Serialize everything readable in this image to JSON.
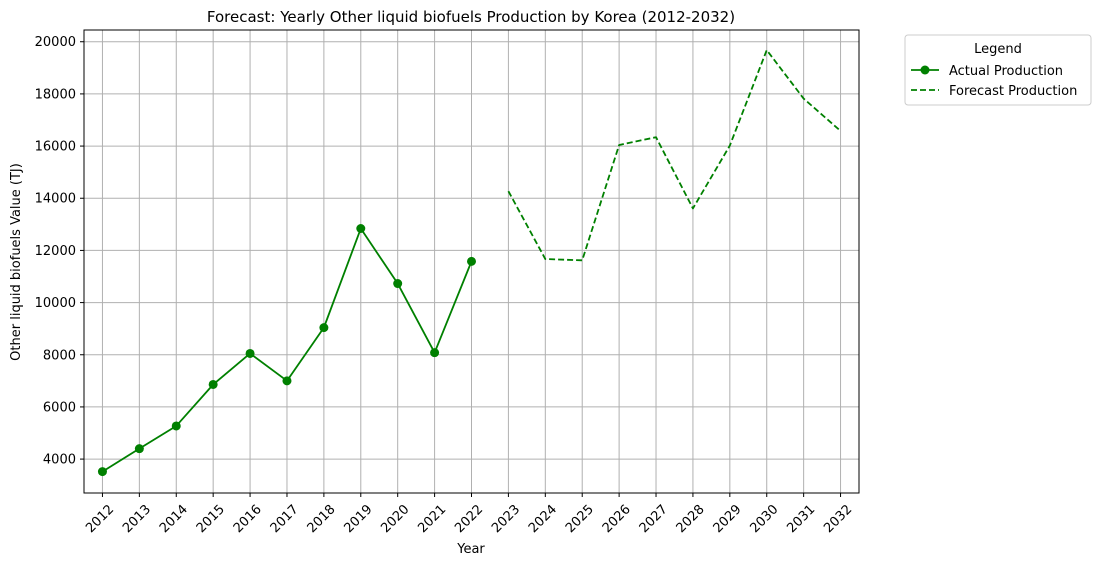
{
  "chart_data": {
    "type": "line",
    "title": "Forecast: Yearly Other liquid biofuels Production by Korea (2012-2032)",
    "xlabel": "Year",
    "ylabel": "Other liquid biofuels Value (TJ)",
    "x_ticks": [
      "2012",
      "2013",
      "2014",
      "2015",
      "2016",
      "2017",
      "2018",
      "2019",
      "2020",
      "2021",
      "2022",
      "2023",
      "2024",
      "2025",
      "2026",
      "2027",
      "2028",
      "2029",
      "2030",
      "2031",
      "2032"
    ],
    "y_ticks": [
      4000,
      6000,
      8000,
      10000,
      12000,
      14000,
      16000,
      18000,
      20000
    ],
    "xlim": [
      2011.5,
      2032.5
    ],
    "ylim": [
      2700,
      20450
    ],
    "grid": true,
    "legend": {
      "title": "Legend",
      "placement": "outside-top-right"
    },
    "series": [
      {
        "name": "Actual Production",
        "style": "solid-with-markers",
        "color": "#008000",
        "x": [
          2012,
          2013,
          2014,
          2015,
          2016,
          2017,
          2018,
          2019,
          2020,
          2021,
          2022
        ],
        "values": [
          3520,
          4400,
          5270,
          6860,
          8050,
          7000,
          9040,
          12840,
          10730,
          8080,
          11580
        ]
      },
      {
        "name": "Forecast Production",
        "style": "dashed",
        "color": "#008000",
        "x": [
          2023,
          2024,
          2025,
          2026,
          2027,
          2028,
          2029,
          2030,
          2031,
          2032
        ],
        "values": [
          14270,
          11670,
          11620,
          16040,
          16340,
          13610,
          16020,
          19680,
          17820,
          16580
        ]
      }
    ]
  }
}
